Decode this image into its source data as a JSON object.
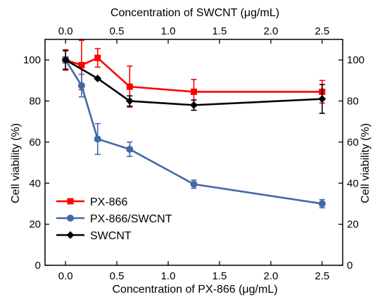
{
  "chart_data": {
    "type": "line",
    "xlabel_bottom": "Concentration of PX-866 (μg/mL)",
    "xlabel_top": "Concentration of SWCNT (μg/mL)",
    "ylabel_left": "Cell viability (%)",
    "ylabel_right": "Cell viability (%)",
    "xlim": [
      -0.2,
      2.7
    ],
    "ylim": [
      0,
      110
    ],
    "x_ticks_bottom": [
      "0.0",
      "0.5",
      "1.0",
      "1.5",
      "2.0",
      "2.5"
    ],
    "x_ticks_top": [
      "0.0",
      "0.5",
      "1.0",
      "1.5",
      "2.0",
      "2.5"
    ],
    "y_ticks": [
      "0",
      "20",
      "40",
      "60",
      "80",
      "100"
    ],
    "legend_position": "bottom-left",
    "grid": false,
    "series": [
      {
        "name": "PX-866",
        "color": "#ff0000",
        "marker": "square",
        "x": [
          0,
          0.156,
          0.3125,
          0.625,
          1.25,
          2.5
        ],
        "y": [
          100,
          97.5,
          101,
          87,
          84.5,
          84.5
        ],
        "err": [
          5,
          12,
          4.5,
          10,
          6,
          5.5
        ]
      },
      {
        "name": "PX-866/SWCNT",
        "color": "#4169a8",
        "marker": "circle",
        "x": [
          0,
          0.156,
          0.3125,
          0.625,
          1.25,
          2.5
        ],
        "y": [
          100,
          87.5,
          61.5,
          56.5,
          39.5,
          30
        ],
        "err": [
          1.5,
          5.5,
          7.5,
          3.5,
          2,
          2
        ]
      },
      {
        "name": "SWCNT",
        "color": "#000000",
        "marker": "diamond",
        "x": [
          0,
          0.3125,
          0.625,
          1.25,
          2.5
        ],
        "y": [
          100,
          91,
          80,
          78,
          81
        ],
        "err": [
          4.5,
          0,
          2.5,
          2.5,
          7
        ]
      }
    ]
  }
}
